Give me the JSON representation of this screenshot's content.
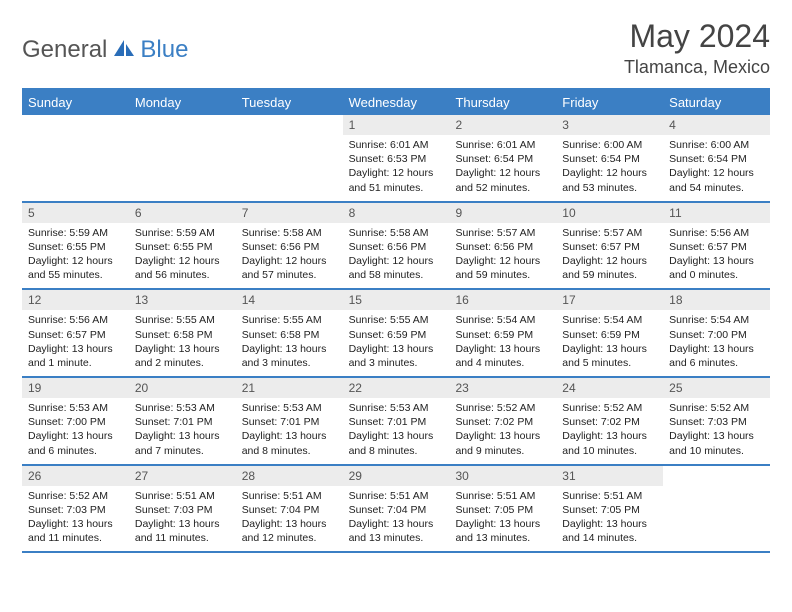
{
  "logo": {
    "general": "General",
    "blue": "Blue"
  },
  "title": {
    "month": "May 2024",
    "location": "Tlamanca, Mexico"
  },
  "dayNames": [
    "Sunday",
    "Monday",
    "Tuesday",
    "Wednesday",
    "Thursday",
    "Friday",
    "Saturday"
  ],
  "colors": {
    "accent": "#3b7fc4",
    "headerText": "#ffffff",
    "cellNumBg": "#ececec",
    "bodyText": "#222222",
    "titleText": "#444444"
  },
  "weeks": [
    [
      {
        "n": "",
        "sr": "",
        "ss": "",
        "dl": ""
      },
      {
        "n": "",
        "sr": "",
        "ss": "",
        "dl": ""
      },
      {
        "n": "",
        "sr": "",
        "ss": "",
        "dl": ""
      },
      {
        "n": "1",
        "sr": "Sunrise: 6:01 AM",
        "ss": "Sunset: 6:53 PM",
        "dl": "Daylight: 12 hours and 51 minutes."
      },
      {
        "n": "2",
        "sr": "Sunrise: 6:01 AM",
        "ss": "Sunset: 6:54 PM",
        "dl": "Daylight: 12 hours and 52 minutes."
      },
      {
        "n": "3",
        "sr": "Sunrise: 6:00 AM",
        "ss": "Sunset: 6:54 PM",
        "dl": "Daylight: 12 hours and 53 minutes."
      },
      {
        "n": "4",
        "sr": "Sunrise: 6:00 AM",
        "ss": "Sunset: 6:54 PM",
        "dl": "Daylight: 12 hours and 54 minutes."
      }
    ],
    [
      {
        "n": "5",
        "sr": "Sunrise: 5:59 AM",
        "ss": "Sunset: 6:55 PM",
        "dl": "Daylight: 12 hours and 55 minutes."
      },
      {
        "n": "6",
        "sr": "Sunrise: 5:59 AM",
        "ss": "Sunset: 6:55 PM",
        "dl": "Daylight: 12 hours and 56 minutes."
      },
      {
        "n": "7",
        "sr": "Sunrise: 5:58 AM",
        "ss": "Sunset: 6:56 PM",
        "dl": "Daylight: 12 hours and 57 minutes."
      },
      {
        "n": "8",
        "sr": "Sunrise: 5:58 AM",
        "ss": "Sunset: 6:56 PM",
        "dl": "Daylight: 12 hours and 58 minutes."
      },
      {
        "n": "9",
        "sr": "Sunrise: 5:57 AM",
        "ss": "Sunset: 6:56 PM",
        "dl": "Daylight: 12 hours and 59 minutes."
      },
      {
        "n": "10",
        "sr": "Sunrise: 5:57 AM",
        "ss": "Sunset: 6:57 PM",
        "dl": "Daylight: 12 hours and 59 minutes."
      },
      {
        "n": "11",
        "sr": "Sunrise: 5:56 AM",
        "ss": "Sunset: 6:57 PM",
        "dl": "Daylight: 13 hours and 0 minutes."
      }
    ],
    [
      {
        "n": "12",
        "sr": "Sunrise: 5:56 AM",
        "ss": "Sunset: 6:57 PM",
        "dl": "Daylight: 13 hours and 1 minute."
      },
      {
        "n": "13",
        "sr": "Sunrise: 5:55 AM",
        "ss": "Sunset: 6:58 PM",
        "dl": "Daylight: 13 hours and 2 minutes."
      },
      {
        "n": "14",
        "sr": "Sunrise: 5:55 AM",
        "ss": "Sunset: 6:58 PM",
        "dl": "Daylight: 13 hours and 3 minutes."
      },
      {
        "n": "15",
        "sr": "Sunrise: 5:55 AM",
        "ss": "Sunset: 6:59 PM",
        "dl": "Daylight: 13 hours and 3 minutes."
      },
      {
        "n": "16",
        "sr": "Sunrise: 5:54 AM",
        "ss": "Sunset: 6:59 PM",
        "dl": "Daylight: 13 hours and 4 minutes."
      },
      {
        "n": "17",
        "sr": "Sunrise: 5:54 AM",
        "ss": "Sunset: 6:59 PM",
        "dl": "Daylight: 13 hours and 5 minutes."
      },
      {
        "n": "18",
        "sr": "Sunrise: 5:54 AM",
        "ss": "Sunset: 7:00 PM",
        "dl": "Daylight: 13 hours and 6 minutes."
      }
    ],
    [
      {
        "n": "19",
        "sr": "Sunrise: 5:53 AM",
        "ss": "Sunset: 7:00 PM",
        "dl": "Daylight: 13 hours and 6 minutes."
      },
      {
        "n": "20",
        "sr": "Sunrise: 5:53 AM",
        "ss": "Sunset: 7:01 PM",
        "dl": "Daylight: 13 hours and 7 minutes."
      },
      {
        "n": "21",
        "sr": "Sunrise: 5:53 AM",
        "ss": "Sunset: 7:01 PM",
        "dl": "Daylight: 13 hours and 8 minutes."
      },
      {
        "n": "22",
        "sr": "Sunrise: 5:53 AM",
        "ss": "Sunset: 7:01 PM",
        "dl": "Daylight: 13 hours and 8 minutes."
      },
      {
        "n": "23",
        "sr": "Sunrise: 5:52 AM",
        "ss": "Sunset: 7:02 PM",
        "dl": "Daylight: 13 hours and 9 minutes."
      },
      {
        "n": "24",
        "sr": "Sunrise: 5:52 AM",
        "ss": "Sunset: 7:02 PM",
        "dl": "Daylight: 13 hours and 10 minutes."
      },
      {
        "n": "25",
        "sr": "Sunrise: 5:52 AM",
        "ss": "Sunset: 7:03 PM",
        "dl": "Daylight: 13 hours and 10 minutes."
      }
    ],
    [
      {
        "n": "26",
        "sr": "Sunrise: 5:52 AM",
        "ss": "Sunset: 7:03 PM",
        "dl": "Daylight: 13 hours and 11 minutes."
      },
      {
        "n": "27",
        "sr": "Sunrise: 5:51 AM",
        "ss": "Sunset: 7:03 PM",
        "dl": "Daylight: 13 hours and 11 minutes."
      },
      {
        "n": "28",
        "sr": "Sunrise: 5:51 AM",
        "ss": "Sunset: 7:04 PM",
        "dl": "Daylight: 13 hours and 12 minutes."
      },
      {
        "n": "29",
        "sr": "Sunrise: 5:51 AM",
        "ss": "Sunset: 7:04 PM",
        "dl": "Daylight: 13 hours and 13 minutes."
      },
      {
        "n": "30",
        "sr": "Sunrise: 5:51 AM",
        "ss": "Sunset: 7:05 PM",
        "dl": "Daylight: 13 hours and 13 minutes."
      },
      {
        "n": "31",
        "sr": "Sunrise: 5:51 AM",
        "ss": "Sunset: 7:05 PM",
        "dl": "Daylight: 13 hours and 14 minutes."
      },
      {
        "n": "",
        "sr": "",
        "ss": "",
        "dl": ""
      }
    ]
  ]
}
